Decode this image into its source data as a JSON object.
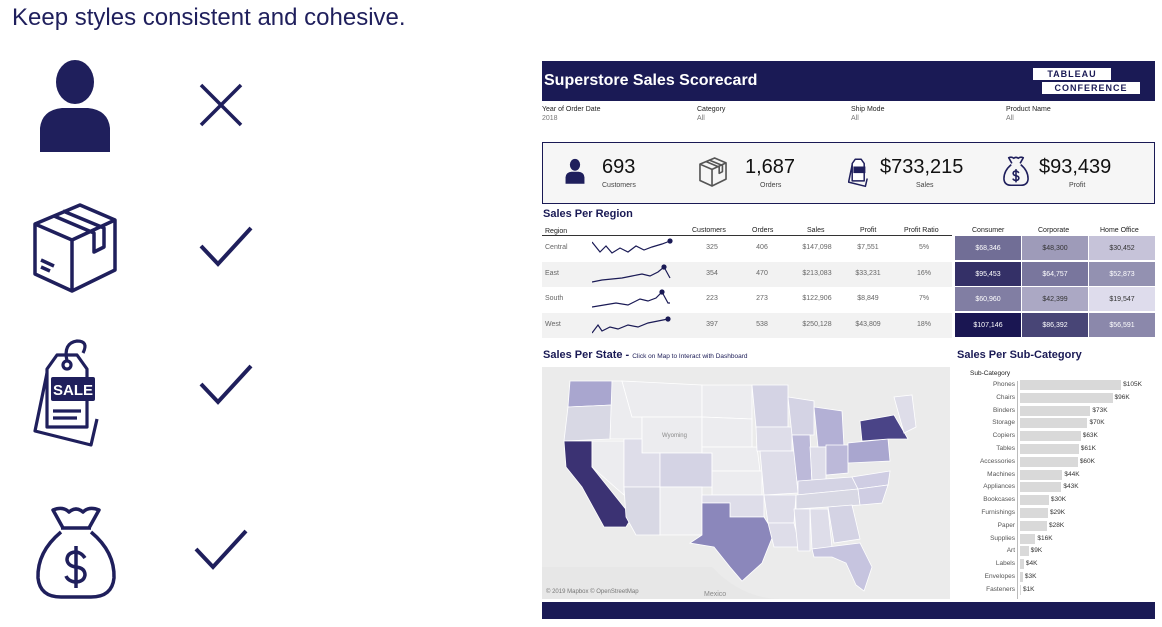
{
  "slide": {
    "title": "Keep styles consistent and cohesive."
  },
  "icons": [
    {
      "icon": "person-icon",
      "mark": "x-mark-icon"
    },
    {
      "icon": "box-icon",
      "mark": "check-mark-icon"
    },
    {
      "icon": "sale-tag-icon",
      "mark": "check-mark-icon"
    },
    {
      "icon": "money-bag-icon",
      "mark": "check-mark-icon"
    }
  ],
  "dashboard": {
    "title": "Superstore Sales Scorecard",
    "logo": {
      "line1": "TABLEAU",
      "line2": "CONFERENCE"
    },
    "filters": [
      {
        "label": "Year of Order Date",
        "value": "2018"
      },
      {
        "label": "Category",
        "value": "All"
      },
      {
        "label": "Ship Mode",
        "value": "All"
      },
      {
        "label": "Product Name",
        "value": "All"
      }
    ],
    "kpis": [
      {
        "value": "693",
        "label": "Customers",
        "icon": "person-icon"
      },
      {
        "value": "1,687",
        "label": "Orders",
        "icon": "box-icon"
      },
      {
        "value": "$733,215",
        "label": "Sales",
        "icon": "sale-tag-icon"
      },
      {
        "value": "$93,439",
        "label": "Profit",
        "icon": "money-bag-icon"
      }
    ],
    "region": {
      "title": "Sales Per Region",
      "headers": {
        "region": "Region",
        "customers": "Customers",
        "orders": "Orders",
        "sales": "Sales",
        "profit": "Profit",
        "ratio": "Profit Ratio",
        "consumer": "Consumer",
        "corporate": "Corporate",
        "home": "Home Office"
      },
      "rows": [
        {
          "name": "Central",
          "customers": "325",
          "orders": "406",
          "sales": "$147,098",
          "profit": "$7,551",
          "ratio": "5%",
          "consumer": "$68,346",
          "corporate": "$48,300",
          "home": "$30,452"
        },
        {
          "name": "East",
          "customers": "354",
          "orders": "470",
          "sales": "$213,083",
          "profit": "$33,231",
          "ratio": "16%",
          "consumer": "$95,453",
          "corporate": "$64,757",
          "home": "$52,873"
        },
        {
          "name": "South",
          "customers": "223",
          "orders": "273",
          "sales": "$122,906",
          "profit": "$8,849",
          "ratio": "7%",
          "consumer": "$60,960",
          "corporate": "$42,399",
          "home": "$19,547"
        },
        {
          "name": "West",
          "customers": "397",
          "orders": "538",
          "sales": "$250,128",
          "profit": "$43,809",
          "ratio": "18%",
          "consumer": "$107,146",
          "corporate": "$86,392",
          "home": "$56,591"
        }
      ]
    },
    "state": {
      "title": "Sales Per State - ",
      "subtitle": "Click on Map to Interact with Dashboard",
      "credit": "© 2019 Mapbox © OpenStreetMap",
      "labels": [
        "Wyoming",
        "Mexico"
      ]
    },
    "subcategory": {
      "title": "Sales Per Sub-Category",
      "header": "Sub-Category"
    }
  },
  "chart_data": {
    "type": "bar",
    "title": "Sales Per Sub-Category",
    "xlabel": "",
    "ylabel": "Sub-Category",
    "categories": [
      "Phones",
      "Chairs",
      "Binders",
      "Storage",
      "Copiers",
      "Tables",
      "Accessories",
      "Machines",
      "Appliances",
      "Bookcases",
      "Furnishings",
      "Paper",
      "Supplies",
      "Art",
      "Labels",
      "Envelopes",
      "Fasteners"
    ],
    "values": [
      105,
      96,
      73,
      70,
      63,
      61,
      60,
      44,
      43,
      30,
      29,
      28,
      16,
      9,
      4,
      3,
      1
    ],
    "value_labels": [
      "$105K",
      "$96K",
      "$73K",
      "$70K",
      "$63K",
      "$61K",
      "$60K",
      "$44K",
      "$43K",
      "$30K",
      "$29K",
      "$28K",
      "$16K",
      "$9K",
      "$4K",
      "$3K",
      "$1K"
    ],
    "orientation": "horizontal",
    "xlim": [
      0,
      110
    ]
  }
}
